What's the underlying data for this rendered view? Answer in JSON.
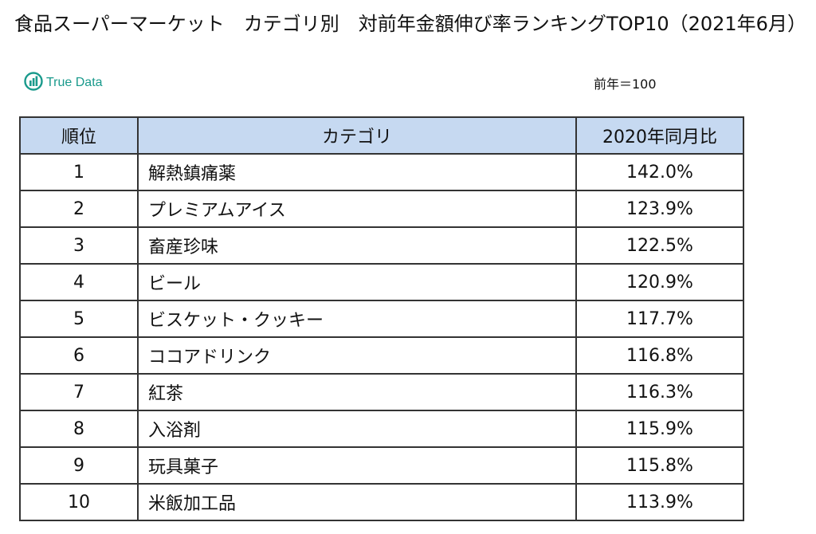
{
  "title": "食品スーパーマーケット　カテゴリ別　対前年金額伸び率ランキングTOP10（2021年6月）",
  "logo": {
    "text": "True Data",
    "icon": "truedata-logo-icon"
  },
  "note": "前年＝100",
  "table": {
    "headers": [
      "順位",
      "カテゴリ",
      "2020年同月比"
    ],
    "rows": [
      {
        "rank": "1",
        "category": "解熱鎮痛薬",
        "value": "142.0%"
      },
      {
        "rank": "2",
        "category": "プレミアムアイス",
        "value": "123.9%"
      },
      {
        "rank": "3",
        "category": "畜産珍味",
        "value": "122.5%"
      },
      {
        "rank": "4",
        "category": "ビール",
        "value": "120.9%"
      },
      {
        "rank": "5",
        "category": "ビスケット・クッキー",
        "value": "117.7%"
      },
      {
        "rank": "6",
        "category": "ココアドリンク",
        "value": "116.8%"
      },
      {
        "rank": "7",
        "category": "紅茶",
        "value": "116.3%"
      },
      {
        "rank": "8",
        "category": "入浴剤",
        "value": "115.9%"
      },
      {
        "rank": "9",
        "category": "玩具菓子",
        "value": "115.8%"
      },
      {
        "rank": "10",
        "category": "米飯加工品",
        "value": "113.9%"
      }
    ]
  },
  "colors": {
    "header_bg": "#c6d9f1",
    "logo": "#1a9a8c",
    "border": "#333333"
  }
}
